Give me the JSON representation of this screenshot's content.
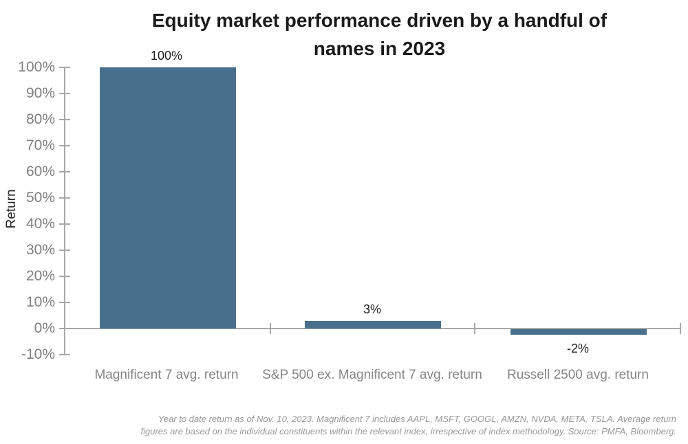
{
  "chart_data": {
    "type": "bar",
    "title": "Equity market performance driven by a handful of names in 2023",
    "categories": [
      "Magnificent 7 avg. return",
      "S&P 500 ex. Magnificent 7 avg. return",
      "Russell 2500 avg. return"
    ],
    "values": [
      100,
      3,
      -2
    ],
    "data_labels": [
      "100%",
      "3%",
      "-2%"
    ],
    "xlabel": "",
    "ylabel": "Return",
    "ylim": [
      -10,
      100
    ],
    "ytick_step": 10,
    "ytick_labels": [
      "100%",
      "90%",
      "80%",
      "70%",
      "60%",
      "50%",
      "40%",
      "30%",
      "20%",
      "10%",
      "0%",
      "-10%"
    ],
    "grid": false,
    "legend_position": "none",
    "bar_color": "#48708C",
    "footnote": "Year to date return as of Nov. 10, 2023. Magnificent 7 includes AAPL, MSFT, GOOGL, AMZN, NVDA, META, TSLA. Average return figures are based on the individual constituents within the relevant index, irrespective of index methodology. Source: PMFA, Bloomberg."
  },
  "title": {
    "lines": [
      "Equity market performance driven by a handful of",
      "names in 2023"
    ]
  },
  "footnote": {
    "lines": [
      "Year to date return as of Nov. 10, 2023. Magnificent 7 includes AAPL, MSFT, GOOGL, AMZN, NVDA, META, TSLA. Average return",
      "figures are based on the individual constituents within the relevant index, irrespective of index methodology. Source: PMFA, Bloomberg."
    ]
  },
  "colors": {
    "background": "#FFFFFF",
    "bar": "#48708C",
    "title_text": "#1A1A1A",
    "data_label_text": "#212121",
    "axis_tick_text": "#7E7E7E",
    "category_text": "#858585",
    "axis_line": "#A8A8A8",
    "footnote_text": "#989898"
  }
}
